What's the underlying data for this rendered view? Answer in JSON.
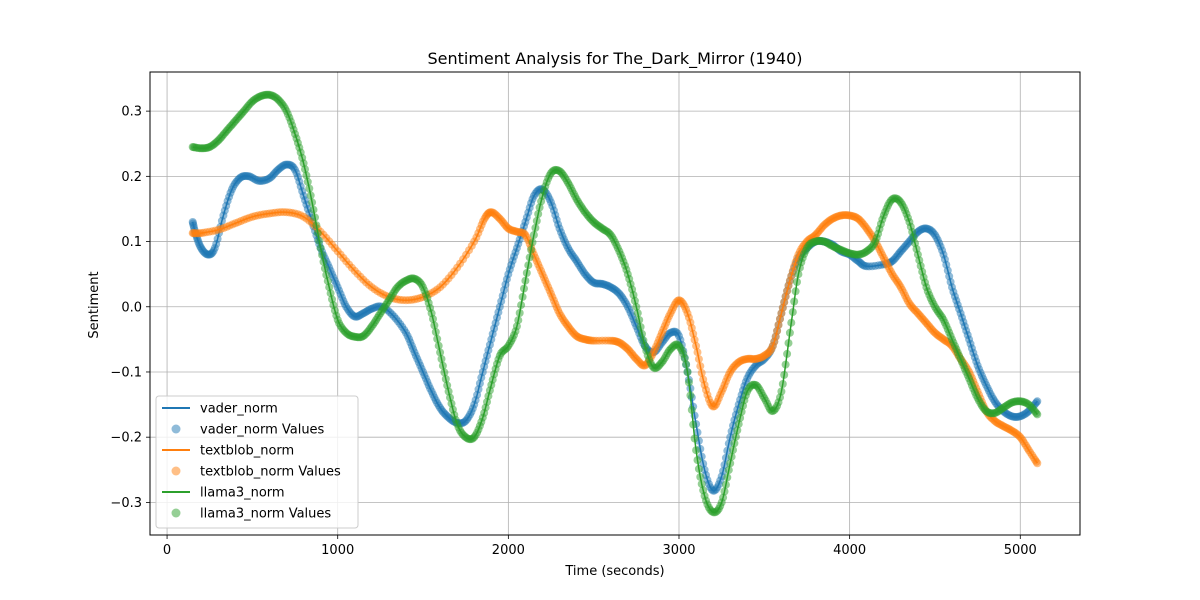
{
  "chart_data": {
    "type": "line",
    "title": "Sentiment Analysis for The_Dark_Mirror (1940)",
    "xlabel": "Time (seconds)",
    "ylabel": "Sentiment",
    "xlim": [
      -100,
      5350
    ],
    "ylim": [
      -0.35,
      0.36
    ],
    "xticks": [
      0,
      1000,
      2000,
      3000,
      4000,
      5000
    ],
    "yticks": [
      -0.3,
      -0.2,
      -0.1,
      0.0,
      0.1,
      0.2,
      0.3
    ],
    "xtick_labels": [
      "0",
      "1000",
      "2000",
      "3000",
      "4000",
      "5000"
    ],
    "ytick_labels": [
      "−0.3",
      "−0.2",
      "−0.1",
      "0.0",
      "0.1",
      "0.2",
      "0.3"
    ],
    "grid": true,
    "legend_position": "lower-left",
    "legend": [
      "vader_norm",
      "vader_norm Values",
      "textblob_norm",
      "textblob_norm Values",
      "llama3_norm",
      "llama3_norm Values"
    ],
    "series": [
      {
        "name": "vader_norm",
        "color": "#1f77b4",
        "points": [
          [
            150,
            0.13
          ],
          [
            170,
            0.11
          ],
          [
            200,
            0.09
          ],
          [
            240,
            0.08
          ],
          [
            280,
            0.09
          ],
          [
            330,
            0.14
          ],
          [
            380,
            0.18
          ],
          [
            430,
            0.198
          ],
          [
            480,
            0.2
          ],
          [
            540,
            0.193
          ],
          [
            600,
            0.197
          ],
          [
            650,
            0.21
          ],
          [
            700,
            0.218
          ],
          [
            750,
            0.21
          ],
          [
            800,
            0.17
          ],
          [
            850,
            0.13
          ],
          [
            900,
            0.09
          ],
          [
            950,
            0.06
          ],
          [
            1000,
            0.03
          ],
          [
            1050,
            0.0
          ],
          [
            1100,
            -0.015
          ],
          [
            1150,
            -0.01
          ],
          [
            1200,
            -0.003
          ],
          [
            1260,
            0.0
          ],
          [
            1330,
            -0.015
          ],
          [
            1400,
            -0.04
          ],
          [
            1450,
            -0.07
          ],
          [
            1500,
            -0.1
          ],
          [
            1550,
            -0.13
          ],
          [
            1600,
            -0.155
          ],
          [
            1650,
            -0.17
          ],
          [
            1700,
            -0.178
          ],
          [
            1750,
            -0.175
          ],
          [
            1800,
            -0.15
          ],
          [
            1850,
            -0.1
          ],
          [
            1900,
            -0.05
          ],
          [
            1950,
            0.0
          ],
          [
            2000,
            0.05
          ],
          [
            2050,
            0.09
          ],
          [
            2100,
            0.13
          ],
          [
            2150,
            0.17
          ],
          [
            2200,
            0.18
          ],
          [
            2250,
            0.16
          ],
          [
            2300,
            0.12
          ],
          [
            2350,
            0.09
          ],
          [
            2400,
            0.07
          ],
          [
            2450,
            0.05
          ],
          [
            2500,
            0.037
          ],
          [
            2550,
            0.035
          ],
          [
            2600,
            0.03
          ],
          [
            2650,
            0.02
          ],
          [
            2700,
            0.0
          ],
          [
            2750,
            -0.03
          ],
          [
            2800,
            -0.06
          ],
          [
            2850,
            -0.07
          ],
          [
            2900,
            -0.055
          ],
          [
            2950,
            -0.04
          ],
          [
            3000,
            -0.045
          ],
          [
            3050,
            -0.1
          ],
          [
            3100,
            -0.18
          ],
          [
            3150,
            -0.25
          ],
          [
            3200,
            -0.282
          ],
          [
            3250,
            -0.26
          ],
          [
            3300,
            -0.2
          ],
          [
            3350,
            -0.15
          ],
          [
            3400,
            -0.11
          ],
          [
            3450,
            -0.09
          ],
          [
            3500,
            -0.08
          ],
          [
            3550,
            -0.06
          ],
          [
            3600,
            -0.01
          ],
          [
            3650,
            0.04
          ],
          [
            3700,
            0.075
          ],
          [
            3750,
            0.09
          ],
          [
            3800,
            0.1
          ],
          [
            3850,
            0.1
          ],
          [
            3900,
            0.095
          ],
          [
            3950,
            0.085
          ],
          [
            4000,
            0.08
          ],
          [
            4050,
            0.07
          ],
          [
            4100,
            0.062
          ],
          [
            4200,
            0.065
          ],
          [
            4250,
            0.07
          ],
          [
            4300,
            0.085
          ],
          [
            4350,
            0.1
          ],
          [
            4400,
            0.115
          ],
          [
            4450,
            0.12
          ],
          [
            4500,
            0.11
          ],
          [
            4550,
            0.08
          ],
          [
            4600,
            0.03
          ],
          [
            4650,
            -0.01
          ],
          [
            4700,
            -0.05
          ],
          [
            4750,
            -0.09
          ],
          [
            4800,
            -0.12
          ],
          [
            4850,
            -0.145
          ],
          [
            4900,
            -0.16
          ],
          [
            4950,
            -0.168
          ],
          [
            5000,
            -0.168
          ],
          [
            5050,
            -0.16
          ],
          [
            5100,
            -0.145
          ]
        ]
      },
      {
        "name": "textblob_norm",
        "color": "#ff7f0e",
        "points": [
          [
            150,
            0.113
          ],
          [
            200,
            0.113
          ],
          [
            300,
            0.118
          ],
          [
            400,
            0.128
          ],
          [
            500,
            0.138
          ],
          [
            600,
            0.143
          ],
          [
            700,
            0.145
          ],
          [
            800,
            0.138
          ],
          [
            900,
            0.115
          ],
          [
            1000,
            0.085
          ],
          [
            1100,
            0.055
          ],
          [
            1200,
            0.03
          ],
          [
            1300,
            0.015
          ],
          [
            1400,
            0.01
          ],
          [
            1500,
            0.015
          ],
          [
            1600,
            0.03
          ],
          [
            1700,
            0.06
          ],
          [
            1800,
            0.1
          ],
          [
            1860,
            0.135
          ],
          [
            1900,
            0.145
          ],
          [
            1950,
            0.135
          ],
          [
            2000,
            0.12
          ],
          [
            2050,
            0.115
          ],
          [
            2100,
            0.11
          ],
          [
            2150,
            0.08
          ],
          [
            2200,
            0.05
          ],
          [
            2250,
            0.02
          ],
          [
            2300,
            -0.01
          ],
          [
            2350,
            -0.03
          ],
          [
            2400,
            -0.045
          ],
          [
            2450,
            -0.05
          ],
          [
            2500,
            -0.052
          ],
          [
            2600,
            -0.052
          ],
          [
            2650,
            -0.055
          ],
          [
            2700,
            -0.065
          ],
          [
            2750,
            -0.08
          ],
          [
            2800,
            -0.09
          ],
          [
            2850,
            -0.07
          ],
          [
            2900,
            -0.04
          ],
          [
            2950,
            -0.01
          ],
          [
            3000,
            0.01
          ],
          [
            3050,
            -0.01
          ],
          [
            3100,
            -0.06
          ],
          [
            3150,
            -0.12
          ],
          [
            3200,
            -0.153
          ],
          [
            3250,
            -0.13
          ],
          [
            3300,
            -0.1
          ],
          [
            3350,
            -0.085
          ],
          [
            3400,
            -0.08
          ],
          [
            3450,
            -0.08
          ],
          [
            3500,
            -0.075
          ],
          [
            3550,
            -0.06
          ],
          [
            3600,
            -0.01
          ],
          [
            3650,
            0.04
          ],
          [
            3700,
            0.08
          ],
          [
            3750,
            0.1
          ],
          [
            3800,
            0.11
          ],
          [
            3850,
            0.125
          ],
          [
            3900,
            0.135
          ],
          [
            3950,
            0.14
          ],
          [
            4000,
            0.14
          ],
          [
            4050,
            0.135
          ],
          [
            4100,
            0.12
          ],
          [
            4150,
            0.1
          ],
          [
            4200,
            0.075
          ],
          [
            4250,
            0.05
          ],
          [
            4300,
            0.03
          ],
          [
            4350,
            0.005
          ],
          [
            4400,
            -0.01
          ],
          [
            4450,
            -0.025
          ],
          [
            4500,
            -0.04
          ],
          [
            4550,
            -0.05
          ],
          [
            4600,
            -0.06
          ],
          [
            4650,
            -0.08
          ],
          [
            4700,
            -0.1
          ],
          [
            4750,
            -0.13
          ],
          [
            4800,
            -0.16
          ],
          [
            4850,
            -0.175
          ],
          [
            4900,
            -0.183
          ],
          [
            4950,
            -0.19
          ],
          [
            5000,
            -0.2
          ],
          [
            5050,
            -0.22
          ],
          [
            5100,
            -0.24
          ]
        ]
      },
      {
        "name": "llama3_norm",
        "color": "#2ca02c",
        "points": [
          [
            150,
            0.245
          ],
          [
            200,
            0.243
          ],
          [
            250,
            0.245
          ],
          [
            300,
            0.255
          ],
          [
            350,
            0.27
          ],
          [
            400,
            0.285
          ],
          [
            450,
            0.3
          ],
          [
            500,
            0.315
          ],
          [
            550,
            0.323
          ],
          [
            600,
            0.325
          ],
          [
            650,
            0.318
          ],
          [
            700,
            0.3
          ],
          [
            750,
            0.265
          ],
          [
            800,
            0.22
          ],
          [
            850,
            0.16
          ],
          [
            900,
            0.09
          ],
          [
            950,
            0.03
          ],
          [
            1000,
            -0.02
          ],
          [
            1050,
            -0.04
          ],
          [
            1100,
            -0.046
          ],
          [
            1150,
            -0.045
          ],
          [
            1200,
            -0.03
          ],
          [
            1250,
            -0.01
          ],
          [
            1300,
            0.01
          ],
          [
            1350,
            0.03
          ],
          [
            1400,
            0.04
          ],
          [
            1450,
            0.043
          ],
          [
            1500,
            0.03
          ],
          [
            1550,
            -0.01
          ],
          [
            1600,
            -0.07
          ],
          [
            1650,
            -0.13
          ],
          [
            1700,
            -0.18
          ],
          [
            1750,
            -0.2
          ],
          [
            1800,
            -0.2
          ],
          [
            1850,
            -0.17
          ],
          [
            1900,
            -0.12
          ],
          [
            1950,
            -0.075
          ],
          [
            2000,
            -0.06
          ],
          [
            2050,
            -0.03
          ],
          [
            2100,
            0.04
          ],
          [
            2150,
            0.11
          ],
          [
            2200,
            0.17
          ],
          [
            2250,
            0.205
          ],
          [
            2300,
            0.208
          ],
          [
            2350,
            0.19
          ],
          [
            2400,
            0.165
          ],
          [
            2450,
            0.145
          ],
          [
            2500,
            0.13
          ],
          [
            2550,
            0.12
          ],
          [
            2600,
            0.11
          ],
          [
            2650,
            0.085
          ],
          [
            2700,
            0.05
          ],
          [
            2750,
            0.0
          ],
          [
            2800,
            -0.06
          ],
          [
            2850,
            -0.093
          ],
          [
            2900,
            -0.085
          ],
          [
            2950,
            -0.065
          ],
          [
            3000,
            -0.06
          ],
          [
            3050,
            -0.1
          ],
          [
            3100,
            -0.22
          ],
          [
            3150,
            -0.29
          ],
          [
            3200,
            -0.315
          ],
          [
            3250,
            -0.3
          ],
          [
            3300,
            -0.24
          ],
          [
            3350,
            -0.18
          ],
          [
            3400,
            -0.13
          ],
          [
            3450,
            -0.12
          ],
          [
            3500,
            -0.14
          ],
          [
            3550,
            -0.16
          ],
          [
            3600,
            -0.13
          ],
          [
            3650,
            -0.04
          ],
          [
            3700,
            0.05
          ],
          [
            3750,
            0.09
          ],
          [
            3800,
            0.1
          ],
          [
            3850,
            0.1
          ],
          [
            3900,
            0.093
          ],
          [
            3950,
            0.087
          ],
          [
            4000,
            0.082
          ],
          [
            4050,
            0.08
          ],
          [
            4100,
            0.085
          ],
          [
            4150,
            0.1
          ],
          [
            4200,
            0.14
          ],
          [
            4250,
            0.165
          ],
          [
            4300,
            0.16
          ],
          [
            4350,
            0.13
          ],
          [
            4400,
            0.08
          ],
          [
            4450,
            0.03
          ],
          [
            4500,
            0.0
          ],
          [
            4550,
            -0.02
          ],
          [
            4600,
            -0.05
          ],
          [
            4650,
            -0.08
          ],
          [
            4700,
            -0.11
          ],
          [
            4750,
            -0.14
          ],
          [
            4800,
            -0.16
          ],
          [
            4850,
            -0.163
          ],
          [
            4900,
            -0.155
          ],
          [
            4950,
            -0.147
          ],
          [
            5000,
            -0.145
          ],
          [
            5050,
            -0.15
          ],
          [
            5100,
            -0.165
          ]
        ]
      }
    ]
  }
}
